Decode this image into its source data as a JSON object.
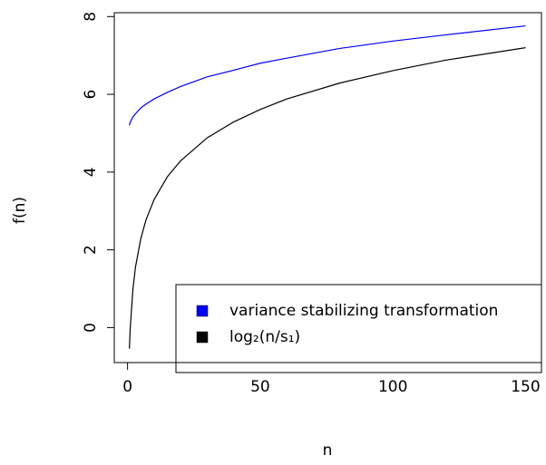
{
  "chart_data": {
    "type": "line",
    "xlabel": "n",
    "ylabel": "f(n)",
    "x": [
      0.7,
      1,
      2,
      3,
      5,
      7,
      10,
      15,
      20,
      30,
      40,
      50,
      60,
      80,
      100,
      120,
      150
    ],
    "series": [
      {
        "name": "variance stabilizing transformation",
        "color": "#0000ff",
        "values": [
          5.2,
          5.28,
          5.42,
          5.5,
          5.65,
          5.75,
          5.88,
          6.05,
          6.2,
          6.45,
          6.62,
          6.8,
          6.93,
          7.18,
          7.37,
          7.53,
          7.76
        ]
      },
      {
        "name": "log₂(n/s₁)",
        "color": "#000000",
        "values": [
          -0.54,
          -0.03,
          0.97,
          1.56,
          2.29,
          2.78,
          3.29,
          3.88,
          4.29,
          4.88,
          5.29,
          5.61,
          5.88,
          6.29,
          6.61,
          6.88,
          7.2
        ]
      }
    ],
    "xlim": [
      -5,
      156
    ],
    "ylim": [
      -0.9,
      8.1
    ],
    "xticks": [
      0,
      50,
      100,
      150
    ],
    "yticks": [
      0,
      2,
      4,
      6,
      8
    ],
    "legend": "bottomright"
  }
}
